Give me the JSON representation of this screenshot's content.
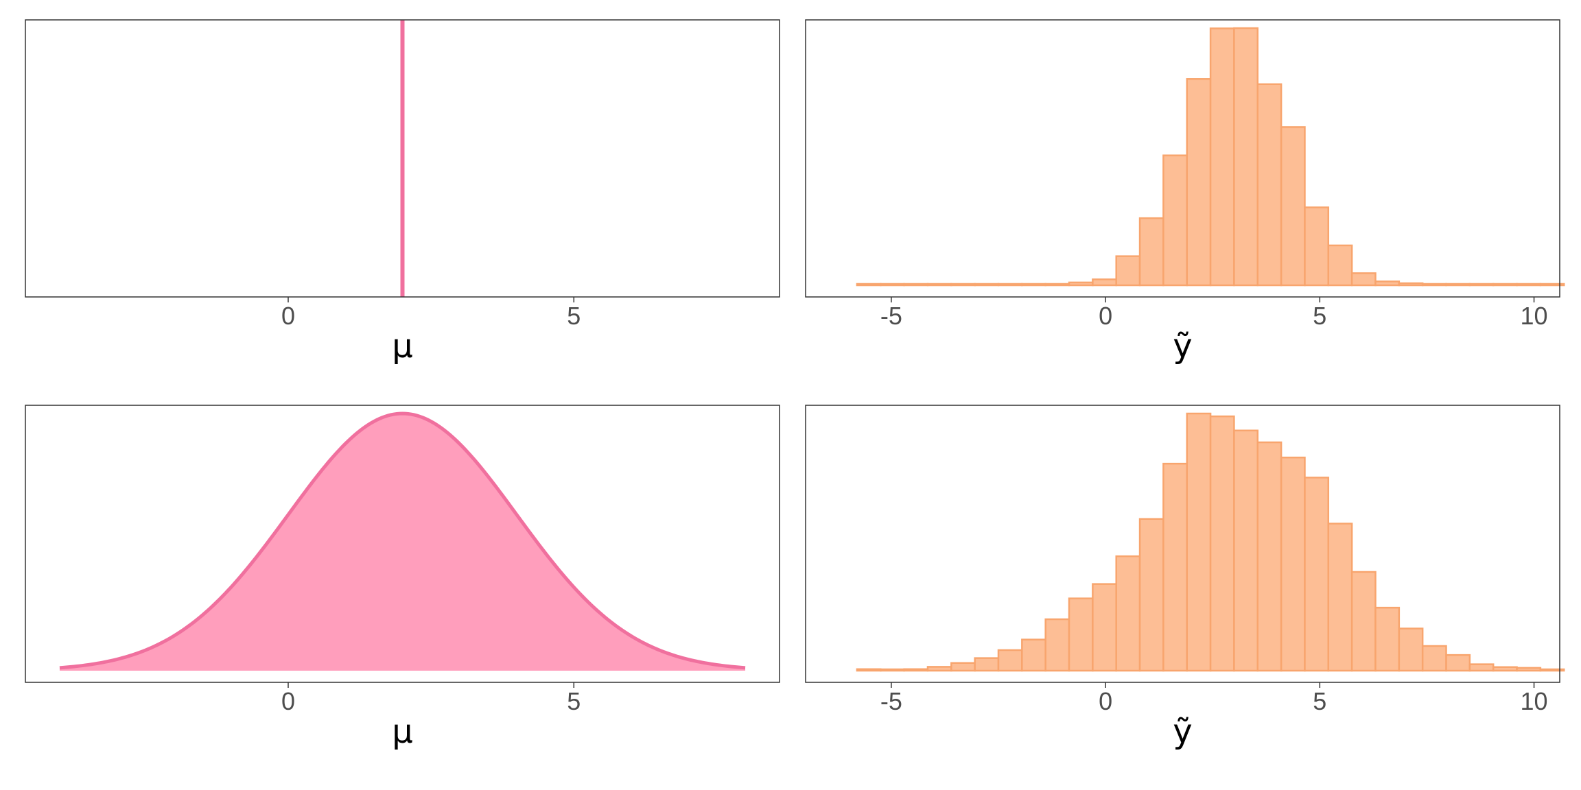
{
  "chart_data": [
    {
      "type": "line",
      "description_free": true,
      "xlabel": "μ",
      "x_ticks": [
        "0",
        "5"
      ],
      "x_tick_values": [
        0,
        5
      ],
      "xlim": [
        -4.6,
        8.6
      ],
      "grid": false,
      "series": [
        {
          "kind": "vline",
          "x": 2.0
        }
      ],
      "colors": {
        "line": "#F0709E"
      }
    },
    {
      "type": "bar",
      "xlabel": "ỹ",
      "x_ticks": [
        "-5",
        "0",
        "5",
        "10"
      ],
      "x_tick_values": [
        -5,
        0,
        5,
        10
      ],
      "xlim": [
        -7.0,
        10.6
      ],
      "grid": false,
      "histogram": {
        "bin_width": 0.55,
        "bin_start": -5.8,
        "values": [
          0.003,
          0.003,
          0.003,
          0.003,
          0.003,
          0.003,
          0.003,
          0.005,
          0.003,
          0.011,
          0.023,
          0.113,
          0.261,
          0.505,
          0.802,
          0.999,
          1.0,
          0.782,
          0.615,
          0.303,
          0.155,
          0.047,
          0.015,
          0.008,
          0.003,
          0.003,
          0.003,
          0.003,
          0.003,
          0.003
        ]
      },
      "colors": {
        "fill": "#FDBE95",
        "stroke": "#F8A56E"
      }
    },
    {
      "type": "area",
      "xlabel": "μ",
      "x_ticks": [
        "0",
        "5"
      ],
      "x_tick_values": [
        0,
        5
      ],
      "xlim": [
        -4.6,
        8.6
      ],
      "grid": false,
      "series": [
        {
          "kind": "density",
          "distribution": "normal",
          "mean": 2.0,
          "sd": 2.0,
          "x_range": [
            -4.0,
            8.0
          ]
        }
      ],
      "colors": {
        "fill": "#FF9EBC",
        "line": "#F0709E"
      }
    },
    {
      "type": "bar",
      "xlabel": "ỹ",
      "x_ticks": [
        "-5",
        "0",
        "5",
        "10"
      ],
      "x_tick_values": [
        -5,
        0,
        5,
        10
      ],
      "xlim": [
        -7.0,
        10.6
      ],
      "grid": false,
      "histogram": {
        "bin_width": 0.55,
        "bin_start": -5.8,
        "values": [
          0.006,
          0.003,
          0.006,
          0.015,
          0.03,
          0.049,
          0.08,
          0.121,
          0.2,
          0.281,
          0.337,
          0.445,
          0.59,
          0.805,
          1.0,
          0.989,
          0.934,
          0.888,
          0.829,
          0.751,
          0.572,
          0.384,
          0.245,
          0.164,
          0.096,
          0.061,
          0.025,
          0.014,
          0.011,
          0.003
        ]
      },
      "colors": {
        "fill": "#FDBE95",
        "stroke": "#F8A56E"
      }
    }
  ]
}
